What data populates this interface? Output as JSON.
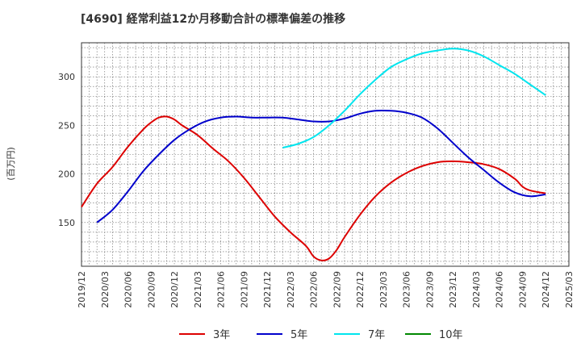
{
  "chart_data": {
    "type": "line",
    "title": "[4690]  経常利益12か月移動合計の標準偏差の推移",
    "ylabel": "(百万円)",
    "xlabel": "",
    "ylim": [
      105,
      335
    ],
    "y_ticks": [
      150,
      200,
      250,
      300
    ],
    "x_ticks": [
      "2019/12",
      "2020/03",
      "2020/06",
      "2020/09",
      "2020/12",
      "2021/03",
      "2021/06",
      "2021/09",
      "2021/12",
      "2022/03",
      "2022/06",
      "2022/09",
      "2022/12",
      "2023/03",
      "2023/06",
      "2023/09",
      "2023/12",
      "2024/03",
      "2024/06",
      "2024/09",
      "2024/12",
      "2025/03"
    ],
    "x_range": [
      "2019/12",
      "2025/03"
    ],
    "grid": true,
    "legend_position": "bottom",
    "series": [
      {
        "name": "3年",
        "color": "#dd0000",
        "points": [
          [
            "2019/12",
            166
          ],
          [
            "2020/02",
            190
          ],
          [
            "2020/04",
            207
          ],
          [
            "2020/06",
            228
          ],
          [
            "2020/08",
            246
          ],
          [
            "2020/09",
            253
          ],
          [
            "2020/10",
            258
          ],
          [
            "2020/11",
            259
          ],
          [
            "2020/12",
            256
          ],
          [
            "2021/01",
            250
          ],
          [
            "2021/03",
            240
          ],
          [
            "2021/05",
            226
          ],
          [
            "2021/07",
            213
          ],
          [
            "2021/09",
            196
          ],
          [
            "2021/11",
            176
          ],
          [
            "2022/01",
            156
          ],
          [
            "2022/03",
            140
          ],
          [
            "2022/05",
            126
          ],
          [
            "2022/06",
            115
          ],
          [
            "2022/07",
            111
          ],
          [
            "2022/08",
            113
          ],
          [
            "2022/09",
            122
          ],
          [
            "2022/10",
            135
          ],
          [
            "2022/12",
            158
          ],
          [
            "2023/02",
            177
          ],
          [
            "2023/04",
            191
          ],
          [
            "2023/06",
            201
          ],
          [
            "2023/08",
            208
          ],
          [
            "2023/10",
            212
          ],
          [
            "2023/12",
            213
          ],
          [
            "2024/02",
            212
          ],
          [
            "2024/04",
            210
          ],
          [
            "2024/06",
            205
          ],
          [
            "2024/08",
            195
          ],
          [
            "2024/09",
            187
          ],
          [
            "2024/10",
            183
          ],
          [
            "2024/12",
            180
          ]
        ]
      },
      {
        "name": "5年",
        "color": "#0000cc",
        "points": [
          [
            "2020/02",
            150
          ],
          [
            "2020/04",
            163
          ],
          [
            "2020/06",
            182
          ],
          [
            "2020/08",
            203
          ],
          [
            "2020/10",
            220
          ],
          [
            "2020/12",
            235
          ],
          [
            "2021/02",
            246
          ],
          [
            "2021/04",
            254
          ],
          [
            "2021/06",
            258
          ],
          [
            "2021/08",
            259
          ],
          [
            "2021/10",
            258
          ],
          [
            "2021/12",
            258
          ],
          [
            "2022/02",
            258
          ],
          [
            "2022/04",
            256
          ],
          [
            "2022/06",
            254
          ],
          [
            "2022/08",
            254
          ],
          [
            "2022/10",
            257
          ],
          [
            "2022/12",
            262
          ],
          [
            "2023/02",
            265
          ],
          [
            "2023/04",
            265
          ],
          [
            "2023/06",
            263
          ],
          [
            "2023/08",
            258
          ],
          [
            "2023/10",
            247
          ],
          [
            "2023/12",
            232
          ],
          [
            "2024/02",
            217
          ],
          [
            "2024/04",
            204
          ],
          [
            "2024/06",
            191
          ],
          [
            "2024/08",
            181
          ],
          [
            "2024/10",
            177
          ],
          [
            "2024/12",
            179
          ]
        ]
      },
      {
        "name": "7年",
        "color": "#00e5ee",
        "points": [
          [
            "2022/02",
            227
          ],
          [
            "2022/04",
            231
          ],
          [
            "2022/06",
            238
          ],
          [
            "2022/08",
            250
          ],
          [
            "2022/10",
            265
          ],
          [
            "2022/12",
            282
          ],
          [
            "2023/02",
            297
          ],
          [
            "2023/04",
            310
          ],
          [
            "2023/06",
            318
          ],
          [
            "2023/08",
            324
          ],
          [
            "2023/10",
            327
          ],
          [
            "2023/12",
            329
          ],
          [
            "2024/02",
            327
          ],
          [
            "2024/04",
            321
          ],
          [
            "2024/06",
            312
          ],
          [
            "2024/08",
            303
          ],
          [
            "2024/10",
            292
          ],
          [
            "2024/12",
            281
          ]
        ]
      },
      {
        "name": "10年",
        "color": "#008800",
        "points": []
      }
    ]
  }
}
